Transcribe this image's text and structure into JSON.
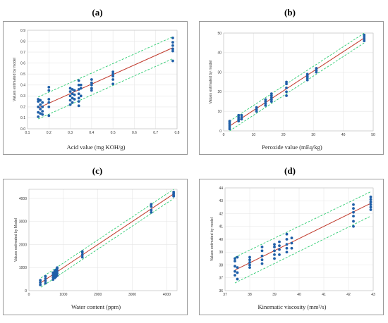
{
  "figure": {
    "colors": {
      "fit_line": "#c0392b",
      "bands": "#2ecc71",
      "points": "#1f5fa8",
      "grid": "#e6e6e6",
      "frame": "#9a9a9a"
    }
  },
  "chart_data": [
    {
      "panel_label": "(a)",
      "type": "scatter",
      "xlabel": "Acid value (mg KOH/g)",
      "ylabel": "Values estimated by model",
      "xlim": [
        0.1,
        0.8
      ],
      "ylim": [
        0.0,
        0.9
      ],
      "xticks": [
        "0.1",
        "0.2",
        "0.3",
        "0.4",
        "0.5",
        "0.6",
        "0.7",
        "0.8"
      ],
      "yticks": [
        "0.0",
        "0.1",
        "0.2",
        "0.3",
        "0.4",
        "0.5",
        "0.6",
        "0.7",
        "0.8",
        "0.9"
      ],
      "fit_line": [
        [
          0.15,
          0.19
        ],
        [
          0.78,
          0.74
        ]
      ],
      "upper_band": [
        [
          0.15,
          0.29
        ],
        [
          0.78,
          0.84
        ]
      ],
      "lower_band": [
        [
          0.15,
          0.09
        ],
        [
          0.78,
          0.64
        ]
      ],
      "points": [
        [
          0.15,
          0.27
        ],
        [
          0.15,
          0.25
        ],
        [
          0.15,
          0.2
        ],
        [
          0.15,
          0.15
        ],
        [
          0.15,
          0.11
        ],
        [
          0.16,
          0.26
        ],
        [
          0.16,
          0.22
        ],
        [
          0.16,
          0.18
        ],
        [
          0.16,
          0.14
        ],
        [
          0.17,
          0.24
        ],
        [
          0.17,
          0.2
        ],
        [
          0.17,
          0.16
        ],
        [
          0.17,
          0.13
        ],
        [
          0.2,
          0.38
        ],
        [
          0.2,
          0.35
        ],
        [
          0.2,
          0.27
        ],
        [
          0.2,
          0.24
        ],
        [
          0.2,
          0.2
        ],
        [
          0.2,
          0.12
        ],
        [
          0.3,
          0.37
        ],
        [
          0.3,
          0.34
        ],
        [
          0.3,
          0.3
        ],
        [
          0.3,
          0.26
        ],
        [
          0.3,
          0.22
        ],
        [
          0.31,
          0.36
        ],
        [
          0.31,
          0.32
        ],
        [
          0.31,
          0.28
        ],
        [
          0.31,
          0.24
        ],
        [
          0.32,
          0.35
        ],
        [
          0.32,
          0.31
        ],
        [
          0.32,
          0.27
        ],
        [
          0.34,
          0.44
        ],
        [
          0.34,
          0.4
        ],
        [
          0.34,
          0.36
        ],
        [
          0.34,
          0.32
        ],
        [
          0.34,
          0.28
        ],
        [
          0.34,
          0.25
        ],
        [
          0.34,
          0.21
        ],
        [
          0.35,
          0.4
        ],
        [
          0.35,
          0.37
        ],
        [
          0.35,
          0.3
        ],
        [
          0.4,
          0.45
        ],
        [
          0.4,
          0.42
        ],
        [
          0.4,
          0.4
        ],
        [
          0.4,
          0.37
        ],
        [
          0.4,
          0.35
        ],
        [
          0.5,
          0.52
        ],
        [
          0.5,
          0.5
        ],
        [
          0.5,
          0.48
        ],
        [
          0.5,
          0.45
        ],
        [
          0.5,
          0.41
        ],
        [
          0.78,
          0.83
        ],
        [
          0.78,
          0.79
        ],
        [
          0.78,
          0.76
        ],
        [
          0.78,
          0.73
        ],
        [
          0.78,
          0.71
        ],
        [
          0.78,
          0.62
        ]
      ]
    },
    {
      "panel_label": "(b)",
      "type": "scatter",
      "xlabel": "Peroxide value (mEq/kg)",
      "ylabel": "Values estimated by model",
      "xlim": [
        0,
        50
      ],
      "ylim": [
        0,
        50
      ],
      "xticks": [
        "0",
        "10",
        "20",
        "30",
        "40",
        "50"
      ],
      "yticks": [
        "0",
        "10",
        "20",
        "30",
        "40",
        "50"
      ],
      "fit_line": [
        [
          2,
          2.5
        ],
        [
          47,
          47.5
        ]
      ],
      "upper_band": [
        [
          2,
          5.0
        ],
        [
          47,
          50.0
        ]
      ],
      "lower_band": [
        [
          2,
          0.0
        ],
        [
          47,
          45.0
        ]
      ],
      "points": [
        [
          2,
          1
        ],
        [
          2,
          2
        ],
        [
          2,
          3
        ],
        [
          2,
          4
        ],
        [
          2,
          5
        ],
        [
          5,
          5
        ],
        [
          5,
          6
        ],
        [
          5,
          7
        ],
        [
          5,
          8
        ],
        [
          6,
          6
        ],
        [
          6,
          7
        ],
        [
          6,
          8
        ],
        [
          11,
          10
        ],
        [
          11,
          11
        ],
        [
          11,
          12
        ],
        [
          14,
          13
        ],
        [
          14,
          14
        ],
        [
          14,
          15
        ],
        [
          14,
          16
        ],
        [
          16,
          15
        ],
        [
          16,
          16
        ],
        [
          16,
          17
        ],
        [
          16,
          18
        ],
        [
          16,
          19
        ],
        [
          21,
          18
        ],
        [
          21,
          20
        ],
        [
          21,
          22
        ],
        [
          21,
          24
        ],
        [
          21,
          25
        ],
        [
          28,
          26
        ],
        [
          28,
          27
        ],
        [
          28,
          28
        ],
        [
          28,
          29
        ],
        [
          31,
          30
        ],
        [
          31,
          31
        ],
        [
          31,
          32
        ],
        [
          47,
          46
        ],
        [
          47,
          47
        ],
        [
          47,
          48
        ],
        [
          47,
          49
        ]
      ]
    },
    {
      "panel_label": "(c)",
      "type": "scatter",
      "xlabel": "Water content (ppm)",
      "ylabel": "Values estimated by Model",
      "xlim": [
        0,
        4300
      ],
      "ylim": [
        0,
        4400
      ],
      "xticks": [
        "0",
        "1000",
        "2000",
        "3000",
        "4000"
      ],
      "yticks": [
        "0",
        "1000",
        "2000",
        "3000",
        "4000"
      ],
      "fit_line": [
        [
          350,
          350
        ],
        [
          4200,
          4200
        ]
      ],
      "upper_band": [
        [
          350,
          550
        ],
        [
          4200,
          4400
        ]
      ],
      "lower_band": [
        [
          350,
          150
        ],
        [
          4200,
          4000
        ]
      ],
      "points": [
        [
          330,
          250
        ],
        [
          330,
          350
        ],
        [
          330,
          450
        ],
        [
          480,
          320
        ],
        [
          480,
          420
        ],
        [
          480,
          520
        ],
        [
          480,
          620
        ],
        [
          700,
          480
        ],
        [
          700,
          580
        ],
        [
          700,
          680
        ],
        [
          700,
          780
        ],
        [
          750,
          550
        ],
        [
          750,
          650
        ],
        [
          750,
          750
        ],
        [
          750,
          850
        ],
        [
          780,
          600
        ],
        [
          780,
          700
        ],
        [
          780,
          800
        ],
        [
          780,
          900
        ],
        [
          820,
          650
        ],
        [
          820,
          750
        ],
        [
          820,
          850
        ],
        [
          820,
          950
        ],
        [
          820,
          1000
        ],
        [
          1550,
          1450
        ],
        [
          1550,
          1550
        ],
        [
          1550,
          1650
        ],
        [
          1550,
          1700
        ],
        [
          3550,
          3400
        ],
        [
          3550,
          3500
        ],
        [
          3550,
          3650
        ],
        [
          3550,
          3750
        ],
        [
          4200,
          4100
        ],
        [
          4200,
          4150
        ],
        [
          4200,
          4220
        ],
        [
          4200,
          4280
        ]
      ]
    },
    {
      "panel_label": "(d)",
      "type": "scatter",
      "xlabel": "Kinematic viscosity (mm²/s)",
      "ylabel": "Values estimated by model",
      "xlim": [
        37,
        43
      ],
      "ylim": [
        36,
        44
      ],
      "xticks": [
        "37",
        "38",
        "39",
        "40",
        "41",
        "42",
        "43"
      ],
      "yticks": [
        "36",
        "37",
        "38",
        "39",
        "40",
        "41",
        "42",
        "43",
        "44"
      ],
      "fit_line": [
        [
          37.4,
          37.6
        ],
        [
          42.9,
          42.8
        ]
      ],
      "upper_band": [
        [
          37.4,
          38.6
        ],
        [
          42.9,
          43.7
        ]
      ],
      "lower_band": [
        [
          37.4,
          36.6
        ],
        [
          42.9,
          41.8
        ]
      ],
      "points": [
        [
          37.4,
          37.2
        ],
        [
          37.4,
          37.5
        ],
        [
          37.4,
          37.9
        ],
        [
          37.4,
          38.3
        ],
        [
          37.4,
          38.5
        ],
        [
          37.5,
          36.9
        ],
        [
          37.5,
          37.4
        ],
        [
          37.5,
          37.8
        ],
        [
          37.5,
          38.6
        ],
        [
          38.0,
          37.8
        ],
        [
          38.0,
          38.0
        ],
        [
          38.0,
          38.2
        ],
        [
          38.0,
          38.4
        ],
        [
          38.0,
          38.6
        ],
        [
          38.5,
          38.1
        ],
        [
          38.5,
          38.4
        ],
        [
          38.5,
          38.7
        ],
        [
          38.5,
          39.1
        ],
        [
          38.5,
          39.4
        ],
        [
          39.0,
          38.5
        ],
        [
          39.0,
          38.8
        ],
        [
          39.0,
          39.1
        ],
        [
          39.0,
          39.4
        ],
        [
          39.0,
          39.6
        ],
        [
          39.2,
          38.8
        ],
        [
          39.2,
          39.2
        ],
        [
          39.2,
          39.5
        ],
        [
          39.2,
          39.8
        ],
        [
          39.5,
          39.0
        ],
        [
          39.5,
          39.3
        ],
        [
          39.5,
          39.6
        ],
        [
          39.5,
          40.0
        ],
        [
          39.5,
          40.4
        ],
        [
          39.7,
          39.3
        ],
        [
          39.7,
          39.7
        ],
        [
          39.7,
          40.1
        ],
        [
          42.2,
          41.0
        ],
        [
          42.2,
          41.4
        ],
        [
          42.2,
          41.8
        ],
        [
          42.2,
          42.1
        ],
        [
          42.2,
          42.4
        ],
        [
          42.2,
          42.7
        ],
        [
          42.9,
          42.3
        ],
        [
          42.9,
          42.5
        ],
        [
          42.9,
          42.7
        ],
        [
          42.9,
          42.9
        ],
        [
          42.9,
          43.1
        ],
        [
          42.9,
          43.3
        ]
      ]
    }
  ]
}
